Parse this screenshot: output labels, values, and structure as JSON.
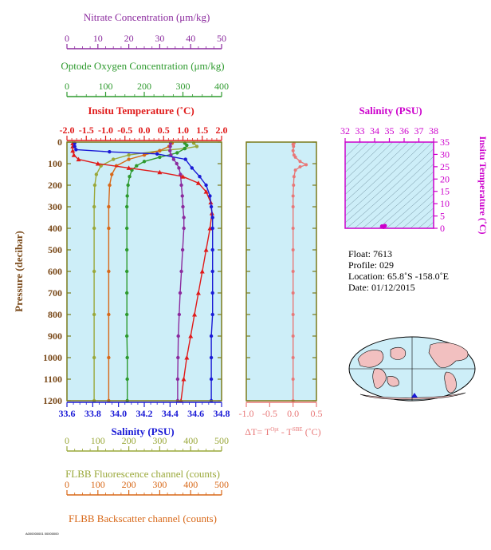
{
  "colors": {
    "nitrate": "#8b2a9e",
    "oxygen": "#2e9a2e",
    "temperature": "#e01a1a",
    "salinity": "#1a1ad6",
    "fluorescence": "#9aa83a",
    "backscatter": "#d86818",
    "delta_t": "#e87878",
    "ts_panel": "#cc00cc",
    "panel_bg": "#cdeef8",
    "frame": "#7a7a1a"
  },
  "chart_data": [
    {
      "type": "line",
      "panel": "profiles",
      "ylabel": "Pressure (decibar)",
      "ylim": [
        1200,
        0
      ],
      "yticks": [
        "0",
        "100",
        "200",
        "300",
        "400",
        "500",
        "600",
        "700",
        "800",
        "900",
        "1000",
        "1100",
        "1200"
      ],
      "axes": {
        "nitrate": {
          "label": "Nitrate Concentration (μm/kg)",
          "range": [
            0,
            50
          ],
          "ticks": [
            "0",
            "10",
            "20",
            "30",
            "40",
            "50"
          ]
        },
        "oxygen": {
          "label": "Optode Oxygen Concentration (μm/kg)",
          "range": [
            0,
            400
          ],
          "ticks": [
            "0",
            "100",
            "200",
            "300",
            "400"
          ]
        },
        "temperature": {
          "label": "Insitu Temperature (˚C)",
          "range": [
            -2.0,
            2.0
          ],
          "ticks": [
            "-2.0",
            "-1.5",
            "-1.0",
            "-0.5",
            "0.0",
            "0.5",
            "1.0",
            "1.5",
            "2.0"
          ]
        },
        "salinity": {
          "label": "Salinity (PSU)",
          "range": [
            33.6,
            34.8
          ],
          "ticks": [
            "33.6",
            "33.8",
            "34.0",
            "34.2",
            "34.4",
            "34.6",
            "34.8"
          ]
        },
        "fluorescence": {
          "label": "FLBB Fluorescence channel (counts)",
          "range": [
            0,
            500
          ],
          "ticks": [
            "0",
            "100",
            "200",
            "300",
            "400",
            "500"
          ]
        },
        "backscatter": {
          "label": "FLBB Backscatter channel (counts)",
          "range": [
            0,
            500
          ],
          "ticks": [
            "0",
            "100",
            "200",
            "300",
            "400",
            "500"
          ]
        }
      },
      "series": [
        {
          "name": "Nitrate",
          "axis": "nitrate",
          "marker": "dot",
          "points": [
            [
              33.5,
              5
            ],
            [
              33.4,
              20
            ],
            [
              33.3,
              40
            ],
            [
              33.6,
              60
            ],
            [
              34.5,
              80
            ],
            [
              35.5,
              100
            ],
            [
              36.2,
              120
            ],
            [
              36.7,
              150
            ],
            [
              37.0,
              200
            ],
            [
              37.3,
              250
            ],
            [
              37.5,
              300
            ],
            [
              37.8,
              350
            ],
            [
              37.8,
              400
            ],
            [
              37.4,
              500
            ],
            [
              37.0,
              600
            ],
            [
              36.6,
              700
            ],
            [
              36.3,
              800
            ],
            [
              36.0,
              900
            ],
            [
              35.9,
              1000
            ],
            [
              35.8,
              1100
            ],
            [
              35.8,
              1200
            ]
          ]
        },
        {
          "name": "Oxygen",
          "axis": "oxygen",
          "marker": "dot",
          "points": [
            [
              305,
              5
            ],
            [
              310,
              15
            ],
            [
              305,
              30
            ],
            [
              285,
              50
            ],
            [
              240,
              70
            ],
            [
              200,
              90
            ],
            [
              180,
              110
            ],
            [
              168,
              130
            ],
            [
              162,
              160
            ],
            [
              158,
              200
            ],
            [
              156,
              250
            ],
            [
              155,
              300
            ],
            [
              155,
              400
            ],
            [
              155,
              500
            ],
            [
              155,
              600
            ],
            [
              155,
              700
            ],
            [
              155,
              800
            ],
            [
              155,
              900
            ],
            [
              156,
              1000
            ],
            [
              156,
              1100
            ],
            [
              156,
              1200
            ]
          ]
        },
        {
          "name": "Temperature",
          "axis": "temperature",
          "marker": "triangle",
          "points": [
            [
              -1.85,
              5
            ],
            [
              -1.85,
              20
            ],
            [
              -1.85,
              40
            ],
            [
              -1.82,
              60
            ],
            [
              -1.7,
              80
            ],
            [
              -1.2,
              100
            ],
            [
              -0.4,
              120
            ],
            [
              0.4,
              140
            ],
            [
              1.0,
              160
            ],
            [
              1.4,
              190
            ],
            [
              1.6,
              230
            ],
            [
              1.72,
              280
            ],
            [
              1.75,
              330
            ],
            [
              1.7,
              400
            ],
            [
              1.6,
              500
            ],
            [
              1.5,
              600
            ],
            [
              1.4,
              700
            ],
            [
              1.3,
              800
            ],
            [
              1.2,
              900
            ],
            [
              1.1,
              1000
            ],
            [
              1.02,
              1100
            ],
            [
              0.95,
              1200
            ]
          ]
        },
        {
          "name": "Salinity",
          "axis": "salinity",
          "marker": "dot",
          "points": [
            [
              33.66,
              5
            ],
            [
              33.66,
              20
            ],
            [
              33.67,
              35
            ],
            [
              33.93,
              45
            ],
            [
              34.3,
              55
            ],
            [
              34.52,
              80
            ],
            [
              34.57,
              120
            ],
            [
              34.63,
              160
            ],
            [
              34.68,
              200
            ],
            [
              34.71,
              250
            ],
            [
              34.72,
              300
            ],
            [
              34.73,
              350
            ],
            [
              34.73,
              400
            ],
            [
              34.73,
              500
            ],
            [
              34.73,
              600
            ],
            [
              34.73,
              700
            ],
            [
              34.73,
              800
            ],
            [
              34.72,
              900
            ],
            [
              34.72,
              1000
            ],
            [
              34.72,
              1100
            ],
            [
              34.72,
              1200
            ]
          ]
        },
        {
          "name": "Fluorescence",
          "axis": "fluorescence",
          "marker": "dot",
          "points": [
            [
              410,
              5
            ],
            [
              420,
              20
            ],
            [
              380,
              30
            ],
            [
              300,
              40
            ],
            [
              200,
              60
            ],
            [
              150,
              80
            ],
            [
              110,
              110
            ],
            [
              95,
              150
            ],
            [
              90,
              200
            ],
            [
              88,
              300
            ],
            [
              88,
              400
            ],
            [
              88,
              600
            ],
            [
              88,
              800
            ],
            [
              88,
              1000
            ],
            [
              88,
              1200
            ]
          ]
        },
        {
          "name": "Backscatter",
          "axis": "backscatter",
          "marker": "dot",
          "points": [
            [
              340,
              5
            ],
            [
              330,
              20
            ],
            [
              300,
              40
            ],
            [
              250,
              60
            ],
            [
              200,
              80
            ],
            [
              160,
              110
            ],
            [
              145,
              150
            ],
            [
              138,
              200
            ],
            [
              135,
              300
            ],
            [
              135,
              400
            ],
            [
              135,
              600
            ],
            [
              135,
              800
            ],
            [
              135,
              1000
            ],
            [
              135,
              1200
            ]
          ]
        }
      ]
    },
    {
      "type": "line",
      "panel": "delta_t",
      "xlabel": "ΔT= T",
      "xlabel_sup1": "Opt",
      "xlabel_mid": " - T",
      "xlabel_sup2": "SBE",
      "xlabel_tail": " (˚C)",
      "xlim": [
        -1.0,
        0.5
      ],
      "xticks": [
        "-1.0",
        "-0.5",
        "0.0",
        "0.5"
      ],
      "ylim": [
        1200,
        0
      ],
      "points": [
        [
          0.02,
          5
        ],
        [
          0.0,
          10
        ],
        [
          0.01,
          20
        ],
        [
          0.0,
          40
        ],
        [
          0.02,
          60
        ],
        [
          0.05,
          70
        ],
        [
          0.15,
          90
        ],
        [
          0.28,
          105
        ],
        [
          0.15,
          115
        ],
        [
          0.05,
          130
        ],
        [
          0.02,
          160
        ],
        [
          0.01,
          200
        ],
        [
          0.0,
          250
        ],
        [
          0.0,
          300
        ],
        [
          0.0,
          400
        ],
        [
          0.0,
          500
        ],
        [
          0.0,
          600
        ],
        [
          0.0,
          700
        ],
        [
          0.0,
          800
        ],
        [
          0.0,
          900
        ],
        [
          0.0,
          1000
        ],
        [
          0.0,
          1100
        ],
        [
          0.0,
          1200
        ]
      ]
    },
    {
      "type": "scatter",
      "panel": "ts_diagram",
      "title": "Salinity (PSU)",
      "ylabel": "Insitu Temperature (˚C)",
      "xlim": [
        32,
        38
      ],
      "xticks": [
        "32",
        "33",
        "34",
        "35",
        "36",
        "37",
        "38"
      ],
      "ylim": [
        0,
        35
      ],
      "yticks": [
        "0",
        "5",
        "10",
        "15",
        "20",
        "25",
        "30",
        "35"
      ],
      "points": [
        [
          34.6,
          0.5
        ],
        [
          34.7,
          1.0
        ],
        [
          34.5,
          0.8
        ]
      ]
    }
  ],
  "float_info": {
    "float": "Float:  7613",
    "profile": "Profile:  029",
    "location": "Location:  65.8˚S  -158.0˚E",
    "date": "Date:  01/12/2015"
  },
  "map_icon": "world-map-icon",
  "footer": "A000000001 00000000"
}
